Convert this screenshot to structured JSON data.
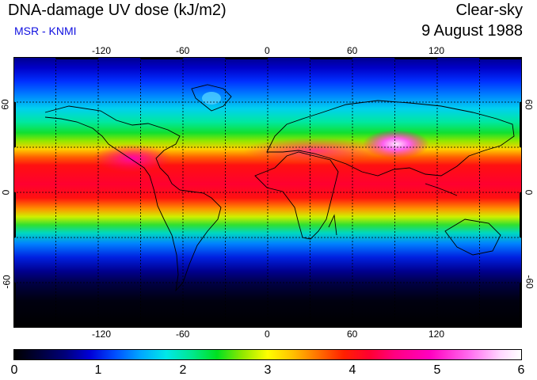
{
  "header": {
    "title": "DNA-damage UV dose (kJ/m2)",
    "subtitle": "MSR - KNMI",
    "mode": "Clear-sky",
    "date": "9 August 1988"
  },
  "map": {
    "projection": "equirectangular",
    "lon_range": [
      -180,
      180
    ],
    "lat_range": [
      -90,
      90
    ],
    "lon_ticks": [
      "-120",
      "-60",
      "0",
      "60",
      "120"
    ],
    "lat_ticks": [
      "60",
      "0",
      "-60"
    ],
    "gridlines": "dotted every 30 degrees",
    "colors": {
      "frame": "#000000",
      "grid": "#000000",
      "coast": "#000000"
    }
  },
  "colorbar": {
    "ticks": [
      "0",
      "1",
      "2",
      "3",
      "4",
      "5",
      "6"
    ],
    "range": [
      0,
      6
    ]
  }
}
